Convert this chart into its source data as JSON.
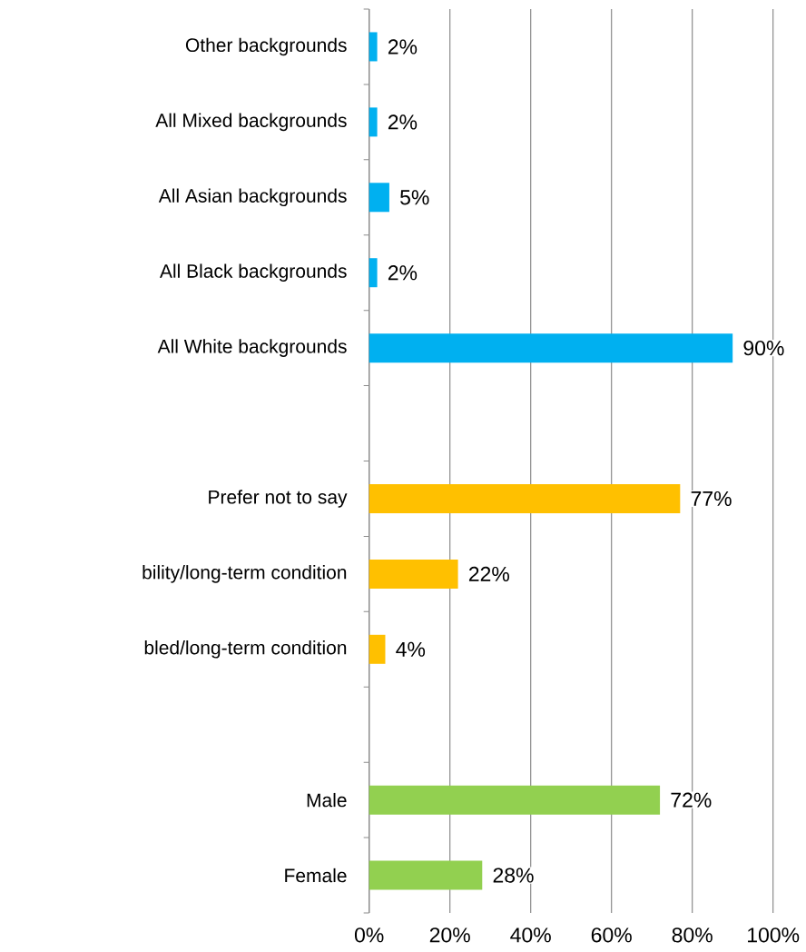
{
  "chart_data": {
    "type": "bar",
    "orientation": "horizontal",
    "categories": [
      "Other backgrounds",
      "All Mixed backgrounds",
      "All Asian backgrounds",
      "All Black backgrounds",
      "All White backgrounds",
      null,
      "Prefer not to say",
      "bility/long-term condition",
      "bled/long-term condition",
      null,
      "Male",
      "Female"
    ],
    "values": [
      2,
      2,
      5,
      2,
      90,
      null,
      77,
      22,
      4,
      null,
      72,
      28
    ],
    "value_labels": [
      "2%",
      "2%",
      "5%",
      "2%",
      "90%",
      null,
      "77%",
      "22%",
      "4%",
      null,
      "72%",
      "28%"
    ],
    "colors": [
      "#00b0f0",
      "#00b0f0",
      "#00b0f0",
      "#00b0f0",
      "#00b0f0",
      "#00b0f0",
      "#ffc000",
      "#ffc000",
      "#ffc000",
      "#ffc000",
      "#92d050",
      "#92d050"
    ],
    "xlim": [
      0,
      100
    ],
    "xticks": [
      {
        "value": 0,
        "label": "0%"
      },
      {
        "value": 20,
        "label": "20%"
      },
      {
        "value": 40,
        "label": "40%"
      },
      {
        "value": 60,
        "label": "60%"
      },
      {
        "value": 80,
        "label": "80%"
      },
      {
        "value": 100,
        "label": "100%"
      }
    ],
    "grid": "x"
  }
}
